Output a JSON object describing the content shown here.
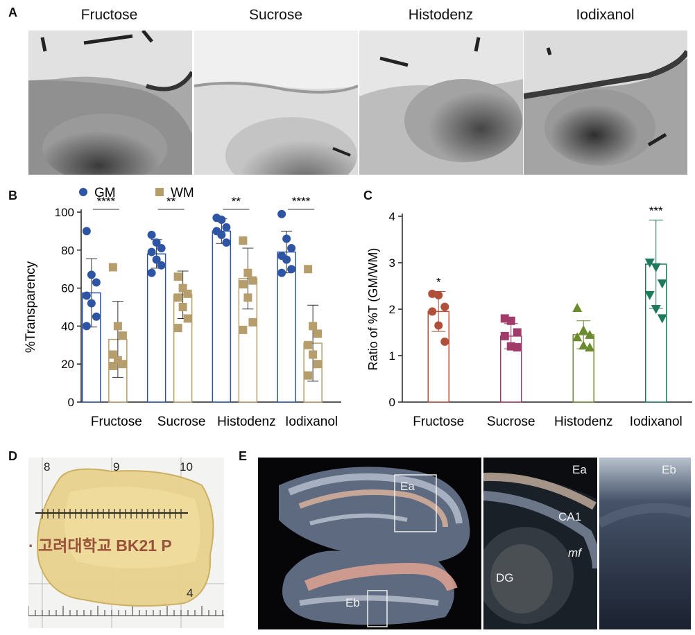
{
  "panels": {
    "A": {
      "label": "A",
      "titles": [
        "Fructose",
        "Sucrose",
        "Histodenz",
        "Iodixanol"
      ]
    },
    "B": {
      "label": "B",
      "legend": [
        {
          "name": "GM",
          "color": "#2e55a4"
        },
        {
          "name": "WM",
          "color": "#b69e6c"
        }
      ]
    },
    "C": {
      "label": "C"
    },
    "D": {
      "label": "D",
      "ruler_numbers": [
        "8",
        "9",
        "10",
        "4"
      ],
      "tape_text": "· 고려대학교 BK21 P"
    },
    "E": {
      "label": "E",
      "box_labels": [
        "Ea",
        "Eb"
      ],
      "inset_a_labels": {
        "corner": "Ea",
        "ca1": "CA1",
        "dg": "DG",
        "mf": "mf"
      },
      "inset_b_labels": {
        "corner": "Eb"
      }
    }
  },
  "chart_data": [
    {
      "type": "bar",
      "panel": "B",
      "categories": [
        "Fructose",
        "Sucrose",
        "Histodenz",
        "Iodixanol"
      ],
      "ylabel": "%Transparency",
      "ylim": [
        0,
        100
      ],
      "yticks": [
        "0",
        "20",
        "40",
        "60",
        "80",
        "100"
      ],
      "series": [
        {
          "name": "GM",
          "color": "#2e55a4",
          "means": [
            57.5,
            78,
            90,
            79
          ],
          "sd": [
            18,
            7.5,
            6.5,
            11
          ],
          "points": [
            [
              90,
              67,
              63,
              56,
              52,
              45,
              40
            ],
            [
              88,
              84,
              81,
              79,
              75,
              72,
              68
            ],
            [
              97,
              96,
              92,
              90,
              88,
              84
            ],
            [
              99,
              86,
              81,
              77,
              75,
              70,
              68
            ]
          ]
        },
        {
          "name": "WM",
          "color": "#b69e6c",
          "means": [
            33,
            56.5,
            65,
            31
          ],
          "sd": [
            20,
            12.5,
            16,
            20
          ],
          "points": [
            [
              71,
              40,
              35,
              25,
              22,
              20,
              19
            ],
            [
              66,
              60,
              57,
              55,
              50,
              44,
              39
            ],
            [
              85,
              68,
              64,
              62,
              55,
              42,
              38
            ],
            [
              70,
              40,
              36,
              30,
              25,
              20,
              14
            ]
          ]
        }
      ],
      "significance": [
        "****",
        "**",
        "**",
        "****"
      ]
    },
    {
      "type": "bar",
      "panel": "C",
      "categories": [
        "Fructose",
        "Sucrose",
        "Histodenz",
        "Iodixanol"
      ],
      "ylabel": "Ratio of %T (GM/WM)",
      "ylim": [
        0,
        4
      ],
      "yticks": [
        "0",
        "1",
        "2",
        "3",
        "4"
      ],
      "means": [
        1.95,
        1.42,
        1.45,
        2.97
      ],
      "sd": [
        0.43,
        0.27,
        0.3,
        0.95
      ],
      "colors": [
        "#b0503a",
        "#a13c6a",
        "#6b8b2e",
        "#1e7a5d"
      ],
      "markers": [
        "circle",
        "square",
        "triangle-up",
        "triangle-down"
      ],
      "points": [
        [
          2.33,
          2.3,
          2.05,
          1.95,
          1.65,
          1.3
        ],
        [
          1.8,
          1.75,
          1.5,
          1.42,
          1.2,
          1.18
        ],
        [
          2.03,
          1.55,
          1.45,
          1.4,
          1.22,
          1.18
        ],
        [
          3.0,
          2.9,
          2.55,
          2.3,
          2.0,
          1.8
        ]
      ],
      "significance": [
        "*",
        "",
        "",
        "***"
      ]
    }
  ]
}
